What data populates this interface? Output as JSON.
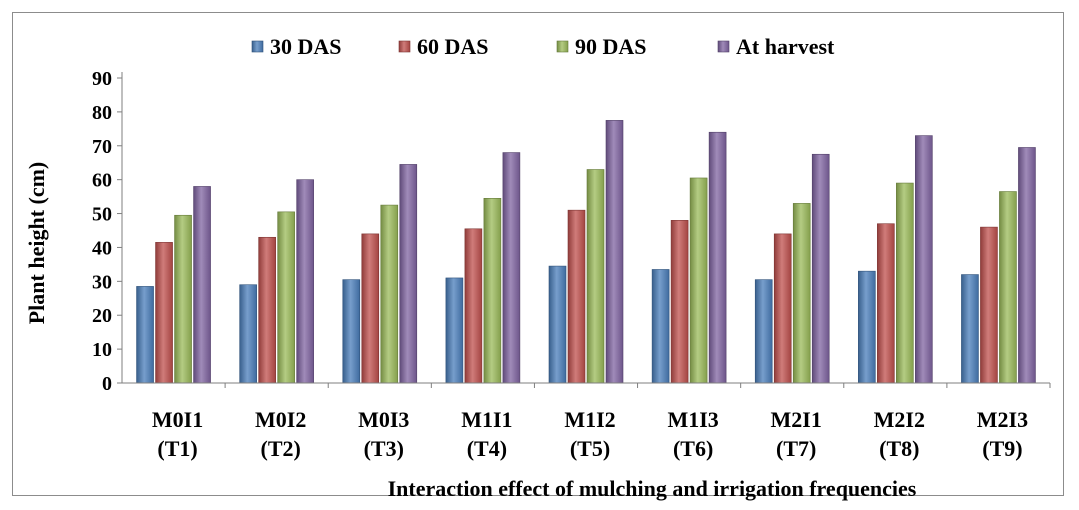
{
  "chart_data": {
    "type": "bar",
    "title": "",
    "xlabel": "Interaction effect of mulching and irrigation frequencies",
    "ylabel": "Plant height (cm)",
    "ylim": [
      0,
      90
    ],
    "yticks": [
      0,
      10,
      20,
      30,
      40,
      50,
      60,
      70,
      80,
      90
    ],
    "legend_position": "top",
    "grid": false,
    "categories": [
      [
        "M0I1",
        "(T1)"
      ],
      [
        "M0I2",
        "(T2)"
      ],
      [
        "M0I3",
        "(T3)"
      ],
      [
        "M1I1",
        "(T4)"
      ],
      [
        "M1I2",
        "(T5)"
      ],
      [
        "M1I3",
        "(T6)"
      ],
      [
        "M2I1",
        "(T7)"
      ],
      [
        "M2I2",
        "(T8)"
      ],
      [
        "M2I3",
        "(T9)"
      ]
    ],
    "series": [
      {
        "name": "30 DAS",
        "color": "#4a7ebb",
        "values": [
          28.5,
          29.0,
          30.5,
          31.0,
          34.5,
          33.5,
          30.5,
          33.0,
          32.0
        ]
      },
      {
        "name": "60 DAS",
        "color": "#c0504d",
        "values": [
          41.5,
          43.0,
          44.0,
          45.5,
          51.0,
          48.0,
          44.0,
          47.0,
          46.0
        ]
      },
      {
        "name": "90 DAS",
        "color": "#9bbb59",
        "values": [
          49.5,
          50.5,
          52.5,
          54.5,
          63.0,
          60.5,
          53.0,
          59.0,
          56.5
        ]
      },
      {
        "name": "At harvest",
        "color": "#8064a2",
        "values": [
          58.0,
          60.0,
          64.5,
          68.0,
          77.5,
          74.0,
          67.5,
          73.0,
          69.5
        ]
      }
    ]
  }
}
